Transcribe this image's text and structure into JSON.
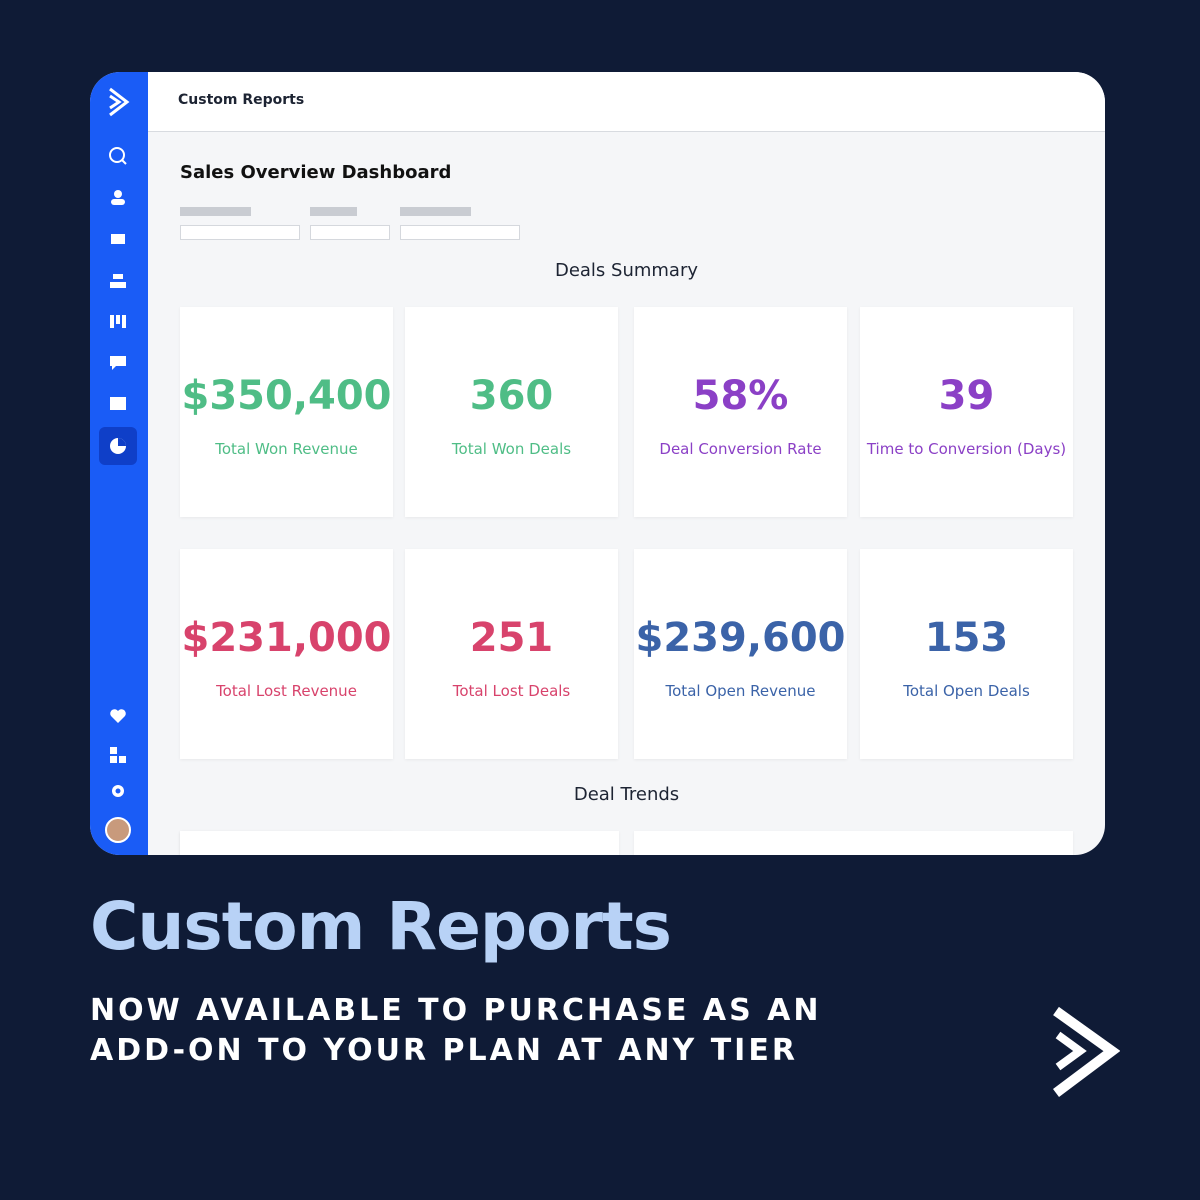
{
  "header": {
    "title": "Custom Reports"
  },
  "dashboard": {
    "title": "Sales Overview Dashboard",
    "sections": [
      {
        "title": "Deals Summary",
        "cards": [
          {
            "value": "$350,400",
            "label": "Total Won Revenue"
          },
          {
            "value": "360",
            "label": "Total Won Deals"
          },
          {
            "value": "58%",
            "label": "Deal Conversion Rate"
          },
          {
            "value": "39",
            "label": "Time to Conversion (Days)"
          },
          {
            "value": "$231,000",
            "label": "Total Lost Revenue"
          },
          {
            "value": "251",
            "label": "Total Lost Deals"
          },
          {
            "value": "$239,600",
            "label": "Total Open Revenue"
          },
          {
            "value": "153",
            "label": "Total Open Deals"
          }
        ]
      },
      {
        "title": "Deal Trends"
      }
    ]
  },
  "promo": {
    "title": "Custom Reports",
    "subtitle": [
      "NOW AVAILABLE TO PURCHASE AS AN",
      "ADD-ON TO YOUR PLAN AT ANY TIER"
    ]
  }
}
